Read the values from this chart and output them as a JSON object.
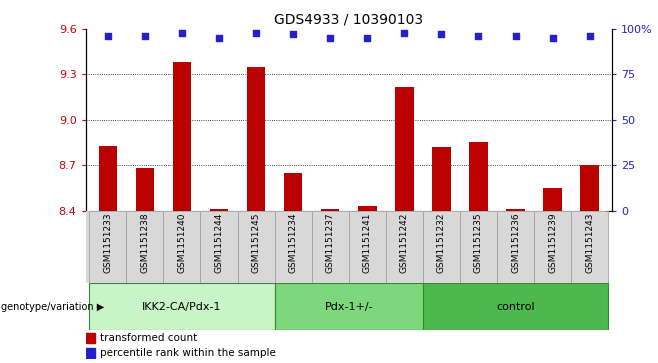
{
  "title": "GDS4933 / 10390103",
  "samples": [
    "GSM1151233",
    "GSM1151238",
    "GSM1151240",
    "GSM1151244",
    "GSM1151245",
    "GSM1151234",
    "GSM1151237",
    "GSM1151241",
    "GSM1151242",
    "GSM1151232",
    "GSM1151235",
    "GSM1151236",
    "GSM1151239",
    "GSM1151243"
  ],
  "bar_values": [
    8.83,
    8.68,
    9.38,
    8.41,
    9.35,
    8.65,
    8.41,
    8.43,
    9.22,
    8.82,
    8.85,
    8.41,
    8.55,
    8.7
  ],
  "dot_values": [
    96,
    96,
    98,
    95,
    98,
    97,
    95,
    95,
    98,
    97,
    96,
    96,
    95,
    96
  ],
  "groups": [
    {
      "label": "IKK2-CA/Pdx-1",
      "start": 0,
      "end": 5,
      "color": "#c8f5c8"
    },
    {
      "label": "Pdx-1+/-",
      "start": 5,
      "end": 9,
      "color": "#7dd87d"
    },
    {
      "label": "control",
      "start": 9,
      "end": 14,
      "color": "#4db84d"
    }
  ],
  "ylim_left": [
    8.4,
    9.6
  ],
  "ylim_right": [
    0,
    100
  ],
  "yticks_left": [
    8.4,
    8.7,
    9.0,
    9.3,
    9.6
  ],
  "yticks_right": [
    0,
    25,
    50,
    75,
    100
  ],
  "ytick_labels_right": [
    "0",
    "25",
    "50",
    "75",
    "100%"
  ],
  "grid_values": [
    8.7,
    9.0,
    9.3
  ],
  "bar_color": "#bb0000",
  "dot_color": "#2222cc",
  "bar_width": 0.5,
  "legend_label_bar": "transformed count",
  "legend_label_dot": "percentile rank within the sample",
  "genotype_label": "genotype/variation",
  "bg_color": "#d8d8d8"
}
